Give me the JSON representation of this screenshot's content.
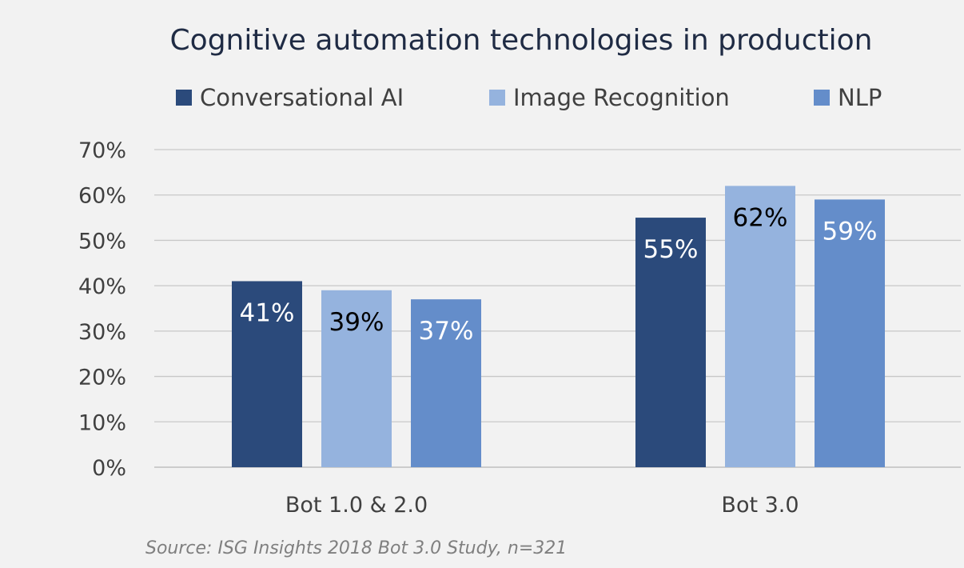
{
  "chart_data": {
    "type": "bar",
    "title": "Cognitive automation technologies in production",
    "categories": [
      "Bot 1.0 & 2.0",
      "Bot 3.0"
    ],
    "series": [
      {
        "name": "Conversational AI",
        "color": "#2b4a7b",
        "label_color": "#ffffff",
        "values": [
          41,
          55
        ],
        "labels": [
          "41%",
          "55%"
        ]
      },
      {
        "name": "Image Recognition",
        "color": "#95b3de",
        "label_color": "#000000",
        "values": [
          39,
          62
        ],
        "labels": [
          "39%",
          "62%"
        ]
      },
      {
        "name": "NLP",
        "color": "#648dca",
        "label_color": "#ffffff",
        "values": [
          37,
          59
        ],
        "labels": [
          "37%",
          "59%"
        ]
      }
    ],
    "y_ticks": [
      "0%",
      "10%",
      "20%",
      "30%",
      "40%",
      "50%",
      "60%",
      "70%"
    ],
    "ylim": [
      0,
      70
    ],
    "ylabel": "",
    "xlabel": "",
    "legend_position": "top",
    "grid": true,
    "source": "Source: ISG Insights 2018 Bot 3.0 Study, n=321"
  }
}
